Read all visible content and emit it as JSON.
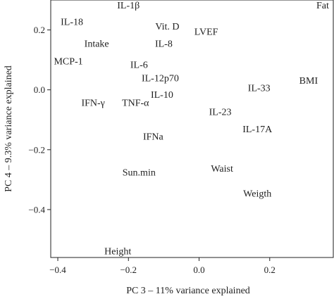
{
  "chart_data": {
    "type": "scatter",
    "title": "",
    "xlabel": "PC 3 – 11% variance explained",
    "ylabel": "PC 4 – 9.3% variance explained",
    "xlim": [
      -0.42,
      0.38
    ],
    "ylim": [
      -0.56,
      0.3
    ],
    "xticks": [
      -0.4,
      -0.2,
      0.0,
      0.2
    ],
    "xtick_labels": [
      "−0.4",
      "−0.2",
      "0.0",
      "0.2"
    ],
    "yticks": [
      -0.4,
      -0.2,
      0.0,
      0.2
    ],
    "ytick_labels": [
      "−0.4",
      "−0.2",
      "0.0",
      "0.2"
    ],
    "grid": false,
    "legend": "none",
    "points": [
      {
        "label": "Fat",
        "x": 0.35,
        "y": 0.355
      },
      {
        "label": "IL-1β",
        "x": -0.2,
        "y": 0.295
      },
      {
        "label": "IL-18",
        "x": -0.36,
        "y": 0.228
      },
      {
        "label": "Vit. D",
        "x": -0.09,
        "y": 0.213
      },
      {
        "label": "LVEF",
        "x": 0.02,
        "y": 0.196
      },
      {
        "label": "Intake",
        "x": -0.29,
        "y": 0.155
      },
      {
        "label": "IL-8",
        "x": -0.1,
        "y": 0.155
      },
      {
        "label": "MCP-1",
        "x": -0.37,
        "y": 0.097
      },
      {
        "label": "IL-6",
        "x": -0.17,
        "y": 0.085
      },
      {
        "label": "IL-12p70",
        "x": -0.11,
        "y": 0.04
      },
      {
        "label": "BMI",
        "x": 0.31,
        "y": 0.032
      },
      {
        "label": "IL-33",
        "x": 0.17,
        "y": 0.008
      },
      {
        "label": "IL-10",
        "x": -0.105,
        "y": -0.015
      },
      {
        "label": "IFN-γ",
        "x": -0.3,
        "y": -0.042
      },
      {
        "label": "TNF-α",
        "x": -0.18,
        "y": -0.042
      },
      {
        "label": "IL-23",
        "x": 0.06,
        "y": -0.072
      },
      {
        "label": "IL-17A",
        "x": 0.165,
        "y": -0.13
      },
      {
        "label": "IFNa",
        "x": -0.13,
        "y": -0.155
      },
      {
        "label": "Sun.min",
        "x": -0.17,
        "y": -0.275
      },
      {
        "label": "Waist",
        "x": 0.065,
        "y": -0.262
      },
      {
        "label": "Weigth",
        "x": 0.165,
        "y": -0.345
      },
      {
        "label": "Height",
        "x": -0.23,
        "y": -0.538
      }
    ]
  }
}
